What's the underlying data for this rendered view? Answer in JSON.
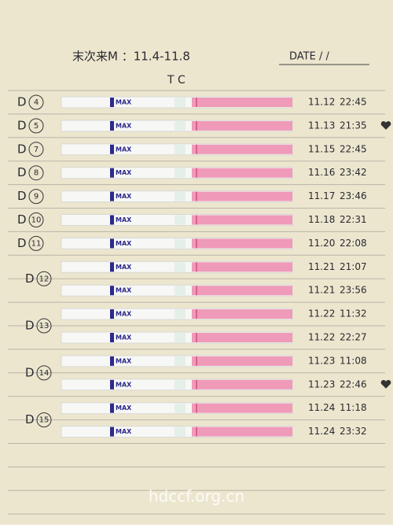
{
  "header": {
    "note": "末次来M ：11.4-11.8",
    "date_label": "DATE  /  /",
    "strip_header": "T C"
  },
  "strip_text": "MAX",
  "groups": [
    {
      "label": "D",
      "number": "4",
      "entries": [
        {
          "date": "11.12",
          "time": "22:45"
        }
      ]
    },
    {
      "label": "D",
      "number": "5",
      "entries": [
        {
          "date": "11.13",
          "time": "21:35"
        }
      ]
    },
    {
      "label": "D",
      "number": "7",
      "entries": [
        {
          "date": "11.15",
          "time": "22:45"
        }
      ]
    },
    {
      "label": "D",
      "number": "8",
      "entries": [
        {
          "date": "11.16",
          "time": "23:42"
        }
      ]
    },
    {
      "label": "D",
      "number": "9",
      "entries": [
        {
          "date": "11.17",
          "time": "23:46"
        }
      ]
    },
    {
      "label": "D",
      "number": "10",
      "entries": [
        {
          "date": "11.18",
          "time": "22:31"
        }
      ]
    },
    {
      "label": "D",
      "number": "11",
      "entries": [
        {
          "date": "11.20",
          "time": "22:08"
        }
      ]
    },
    {
      "label": "D",
      "number": "12",
      "entries": [
        {
          "date": "11.21",
          "time": "21:07"
        },
        {
          "date": "11.21",
          "time": "23:56"
        }
      ]
    },
    {
      "label": "D",
      "number": "13",
      "entries": [
        {
          "date": "11.22",
          "time": "11:32"
        },
        {
          "date": "11.22",
          "time": "22:27"
        }
      ]
    },
    {
      "label": "D",
      "number": "14",
      "entries": [
        {
          "date": "11.23",
          "time": "11:08"
        },
        {
          "date": "11.23",
          "time": "22:46"
        }
      ]
    },
    {
      "label": "D",
      "number": "15",
      "entries": [
        {
          "date": "11.24",
          "time": "11:18"
        },
        {
          "date": "11.24",
          "time": "23:32"
        }
      ]
    }
  ],
  "watermark": "hdccf.org.cn"
}
